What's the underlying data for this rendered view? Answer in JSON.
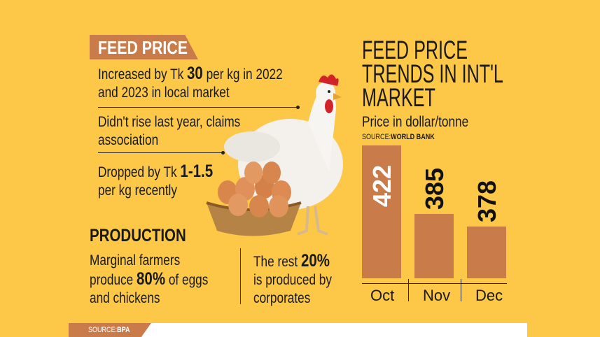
{
  "feed_price": {
    "tag": "FEED PRICE",
    "items": [
      {
        "pre": "Increased by Tk ",
        "bold": "30",
        "post": " per kg in 2022",
        "line2": "and 2023 in local market"
      },
      {
        "pre": "Didn't rise last year, claims",
        "bold": "",
        "post": "",
        "line2": "association"
      },
      {
        "pre": "Dropped by Tk ",
        "bold": "1-1.5",
        "post": "",
        "line2": "per kg recently"
      }
    ]
  },
  "production": {
    "heading": "PRODUCTION",
    "left": {
      "l1": "Marginal farmers",
      "l2_pre": "produce ",
      "l2_bold": "80%",
      "l2_post": " of eggs",
      "l3": "and chickens"
    },
    "right": {
      "l1_pre": "The rest ",
      "l1_bold": "20%",
      "l2": "is produced by",
      "l3": "corporates"
    }
  },
  "colors": {
    "background": "#fdc748",
    "accent": "#c97b4a"
  },
  "chart_data": {
    "type": "bar",
    "title": "FEED PRICE TRENDS IN INT'L MARKET",
    "subtitle": "Price in dollar/tonne",
    "source_label": "SOURCE:",
    "source": "WORLD BANK",
    "categories": [
      "Oct",
      "Nov",
      "Dec"
    ],
    "values": [
      422,
      385,
      378
    ],
    "value_labels": [
      "422",
      "385",
      "378"
    ],
    "ylim": [
      350,
      422
    ],
    "grid": false
  },
  "footer": {
    "source_label": "SOURCE:",
    "source": "BPA"
  }
}
